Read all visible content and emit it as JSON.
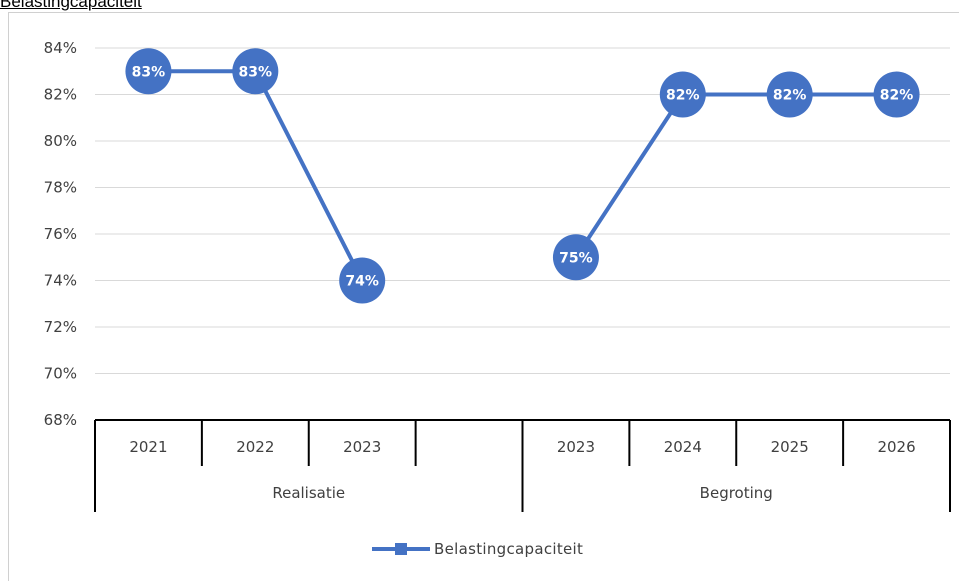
{
  "page_title": "Belastingcapaciteit",
  "chart_data": {
    "type": "line",
    "title": "",
    "xlabel": "",
    "ylabel": "",
    "ylim": [
      68,
      84
    ],
    "yticks": [
      "68%",
      "70%",
      "72%",
      "74%",
      "76%",
      "78%",
      "80%",
      "82%",
      "84%"
    ],
    "groups": [
      {
        "label": "Realisatie",
        "categories": [
          "2021",
          "2022",
          "2023",
          ""
        ]
      },
      {
        "label": "Begroting",
        "categories": [
          "2023",
          "2024",
          "2025",
          "2026"
        ]
      }
    ],
    "series": [
      {
        "name": "Belastingcapaciteit",
        "color": "#4472c4",
        "values": [
          83,
          83,
          74,
          null,
          75,
          82,
          82,
          82
        ],
        "labels": [
          "83%",
          "83%",
          "74%",
          "",
          "75%",
          "82%",
          "82%",
          "82%"
        ]
      }
    ],
    "grid": true,
    "legend": "bottom"
  }
}
